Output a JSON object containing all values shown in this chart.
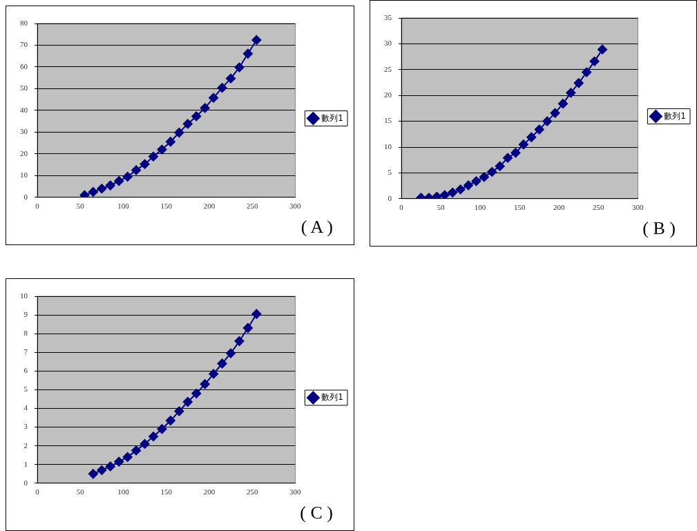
{
  "chart_data": [
    {
      "type": "line",
      "x": [
        55,
        65,
        75,
        85,
        95,
        105,
        115,
        125,
        135,
        145,
        155,
        165,
        175,
        185,
        195,
        205,
        215,
        225,
        235,
        245,
        255
      ],
      "series": [
        {
          "name": "數列1",
          "color": "#000080",
          "values": [
            1,
            2.5,
            4,
            5.5,
            7.5,
            9.5,
            12.5,
            15.3,
            18.8,
            22,
            25.6,
            29.8,
            33.8,
            37.3,
            41.1,
            45.8,
            50.4,
            54.7,
            59.8,
            66.1,
            72.4
          ]
        }
      ],
      "xlim": [
        0,
        300
      ],
      "xticks": [
        0,
        50,
        100,
        150,
        200,
        250,
        300
      ],
      "ylim": [
        0,
        80
      ],
      "yticks": [
        0,
        10,
        20,
        30,
        40,
        50,
        60,
        70,
        80
      ],
      "grid": "y",
      "legend": "right",
      "marker": "diamond",
      "line_style": "solid",
      "annotations": [
        "( A )"
      ]
    },
    {
      "type": "line",
      "x": [
        25,
        35,
        45,
        55,
        65,
        75,
        85,
        95,
        105,
        115,
        125,
        135,
        145,
        155,
        165,
        175,
        185,
        195,
        205,
        215,
        225,
        235,
        245,
        255
      ],
      "series": [
        {
          "name": "數列1",
          "color": "#000080",
          "values": [
            0.2,
            0.2,
            0.4,
            0.7,
            1.2,
            1.8,
            2.6,
            3.4,
            4.2,
            5.2,
            6.3,
            7.9,
            8.9,
            10.5,
            11.9,
            13.4,
            15,
            16.6,
            18.4,
            20.5,
            22.4,
            24.5,
            26.6,
            28.9
          ]
        }
      ],
      "xlim": [
        0,
        300
      ],
      "xticks": [
        0,
        50,
        100,
        150,
        200,
        250,
        300
      ],
      "ylim": [
        0,
        35
      ],
      "yticks": [
        0,
        5,
        10,
        15,
        20,
        25,
        30,
        35
      ],
      "grid": "y",
      "legend": "right",
      "marker": "diamond",
      "line_style": "solid",
      "annotations": [
        "( B )"
      ]
    },
    {
      "type": "line",
      "x": [
        65,
        75,
        85,
        95,
        105,
        115,
        125,
        135,
        145,
        155,
        165,
        175,
        185,
        195,
        205,
        215,
        225,
        235,
        245,
        255
      ],
      "series": [
        {
          "name": "數列1",
          "color": "#000080",
          "values": [
            0.5,
            0.7,
            0.9,
            1.15,
            1.4,
            1.75,
            2.1,
            2.5,
            2.9,
            3.35,
            3.85,
            4.35,
            4.8,
            5.3,
            5.85,
            6.4,
            6.95,
            7.6,
            8.3,
            9.05
          ]
        }
      ],
      "xlim": [
        0,
        300
      ],
      "xticks": [
        0,
        50,
        100,
        150,
        200,
        250,
        300
      ],
      "ylim": [
        0,
        10
      ],
      "yticks": [
        0,
        1,
        2,
        3,
        4,
        5,
        6,
        7,
        8,
        9,
        10
      ],
      "grid": "y",
      "legend": "right",
      "marker": "diamond",
      "line_style": "solid",
      "annotations": [
        "( C )"
      ]
    }
  ]
}
